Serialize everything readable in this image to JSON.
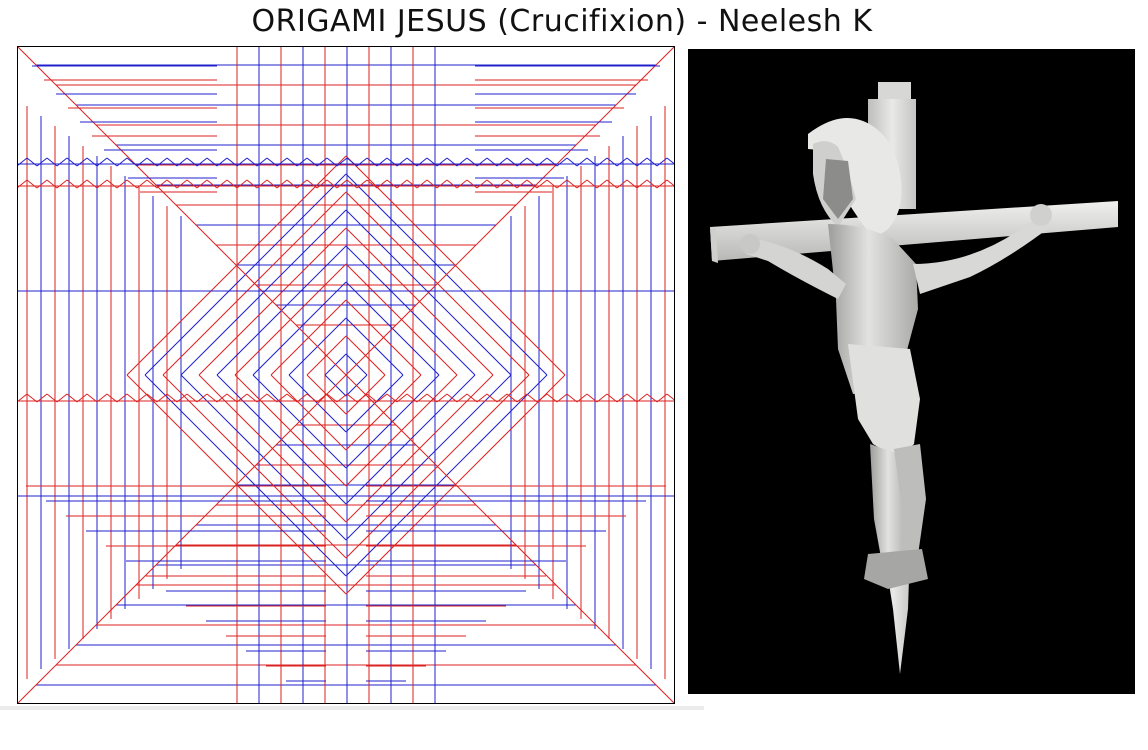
{
  "title": "ORIGAMI JESUS (Crucifixion) - Neelesh K",
  "colors": {
    "mountain": "#dd2222",
    "valley": "#2020cc",
    "border": "#000000",
    "photo_background": "#000000",
    "paper": "#e6e6e4"
  },
  "panels": {
    "crease_pattern": {
      "name": "crease-pattern"
    },
    "photo": {
      "name": "origami-model-photo"
    }
  }
}
